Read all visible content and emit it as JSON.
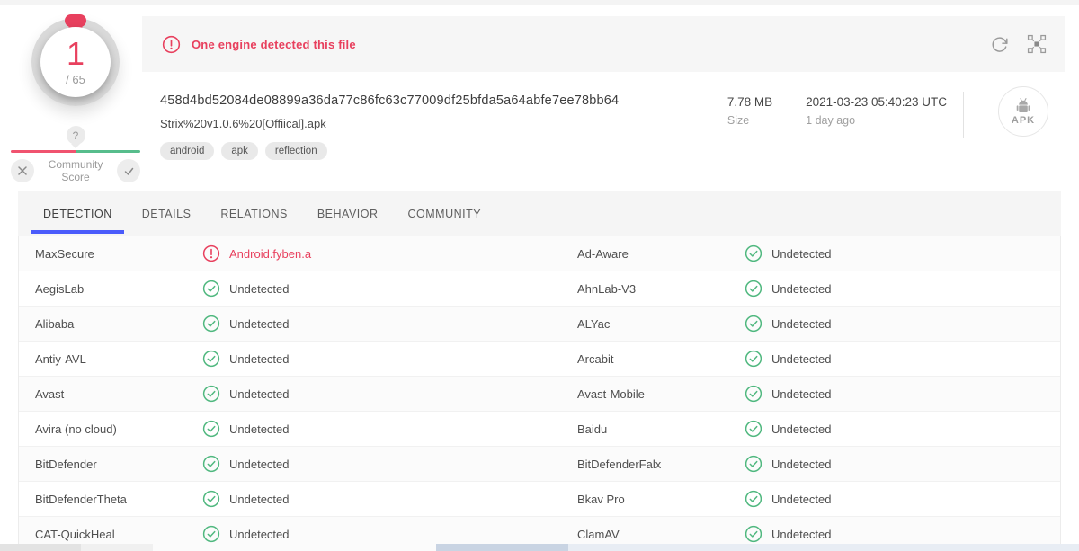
{
  "colors": {
    "red": "#e8405e",
    "green": "#50b87f",
    "blue": "#4a5bfb",
    "icon_gray": "#9a9a9a"
  },
  "score": {
    "value": "1",
    "total": "/ 65",
    "help": "?",
    "label": "Community Score"
  },
  "header": {
    "alert": "One engine detected this file",
    "icons": [
      "reanalyze-icon",
      "similar-files-icon"
    ]
  },
  "file": {
    "hash": "458d4bd52084de08899a36da77c86fc63c77009df25bfda5a64abfe7ee78bb64",
    "name": "Strix%20v1.0.6%20[Offiical].apk",
    "tags": [
      "android",
      "apk",
      "reflection"
    ],
    "size_value": "7.78 MB",
    "size_label": "Size",
    "date_value": "2021-03-23 05:40:23 UTC",
    "date_ago": "1 day ago",
    "type_label": "APK"
  },
  "tabs": [
    {
      "label": "DETECTION",
      "active": true
    },
    {
      "label": "DETAILS",
      "active": false
    },
    {
      "label": "RELATIONS",
      "active": false
    },
    {
      "label": "BEHAVIOR",
      "active": false
    },
    {
      "label": "COMMUNITY",
      "active": false
    }
  ],
  "detections": {
    "left": [
      {
        "engine": "MaxSecure",
        "result": "Android.fyben.a",
        "detected": true
      },
      {
        "engine": "AegisLab",
        "result": "Undetected",
        "detected": false
      },
      {
        "engine": "Alibaba",
        "result": "Undetected",
        "detected": false
      },
      {
        "engine": "Antiy-AVL",
        "result": "Undetected",
        "detected": false
      },
      {
        "engine": "Avast",
        "result": "Undetected",
        "detected": false
      },
      {
        "engine": "Avira (no cloud)",
        "result": "Undetected",
        "detected": false
      },
      {
        "engine": "BitDefender",
        "result": "Undetected",
        "detected": false
      },
      {
        "engine": "BitDefenderTheta",
        "result": "Undetected",
        "detected": false
      },
      {
        "engine": "CAT-QuickHeal",
        "result": "Undetected",
        "detected": false
      }
    ],
    "right": [
      {
        "engine": "Ad-Aware",
        "result": "Undetected",
        "detected": false
      },
      {
        "engine": "AhnLab-V3",
        "result": "Undetected",
        "detected": false
      },
      {
        "engine": "ALYac",
        "result": "Undetected",
        "detected": false
      },
      {
        "engine": "Arcabit",
        "result": "Undetected",
        "detected": false
      },
      {
        "engine": "Avast-Mobile",
        "result": "Undetected",
        "detected": false
      },
      {
        "engine": "Baidu",
        "result": "Undetected",
        "detected": false
      },
      {
        "engine": "BitDefenderFalx",
        "result": "Undetected",
        "detected": false
      },
      {
        "engine": "Bkav Pro",
        "result": "Undetected",
        "detected": false
      },
      {
        "engine": "ClamAV",
        "result": "Undetected",
        "detected": false
      }
    ]
  }
}
